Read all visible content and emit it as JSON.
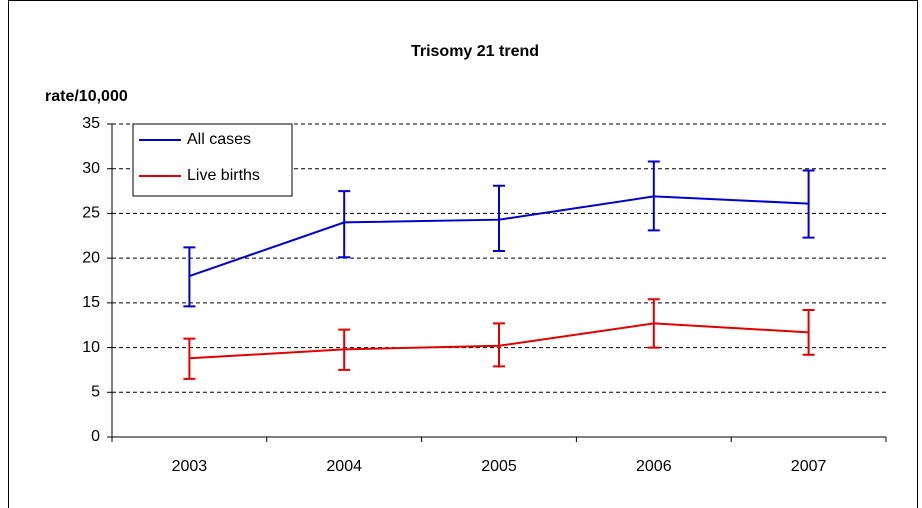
{
  "chart_data": {
    "type": "line",
    "title": "Trisomy 21 trend",
    "y_label": "rate/10,000",
    "categories": [
      "2003",
      "2004",
      "2005",
      "2006",
      "2007"
    ],
    "series": [
      {
        "name": "All cases",
        "color": "#0000cc",
        "values": [
          18,
          24,
          24.3,
          26.9,
          26.1
        ],
        "lower": [
          14.6,
          20.1,
          20.8,
          23.1,
          22.3
        ],
        "upper": [
          21.2,
          27.5,
          28.1,
          30.8,
          29.8
        ]
      },
      {
        "name": "Live births",
        "color": "#e00000",
        "values": [
          8.8,
          9.8,
          10.2,
          12.7,
          11.7
        ],
        "lower": [
          6.5,
          7.5,
          7.9,
          10.0,
          9.2
        ],
        "upper": [
          11.0,
          12.0,
          12.7,
          15.4,
          14.2
        ]
      }
    ],
    "ylim": [
      0,
      35
    ],
    "yticks": [
      0,
      5,
      10,
      15,
      20,
      25,
      30,
      35
    ],
    "grid": true,
    "legend": "upper left"
  }
}
